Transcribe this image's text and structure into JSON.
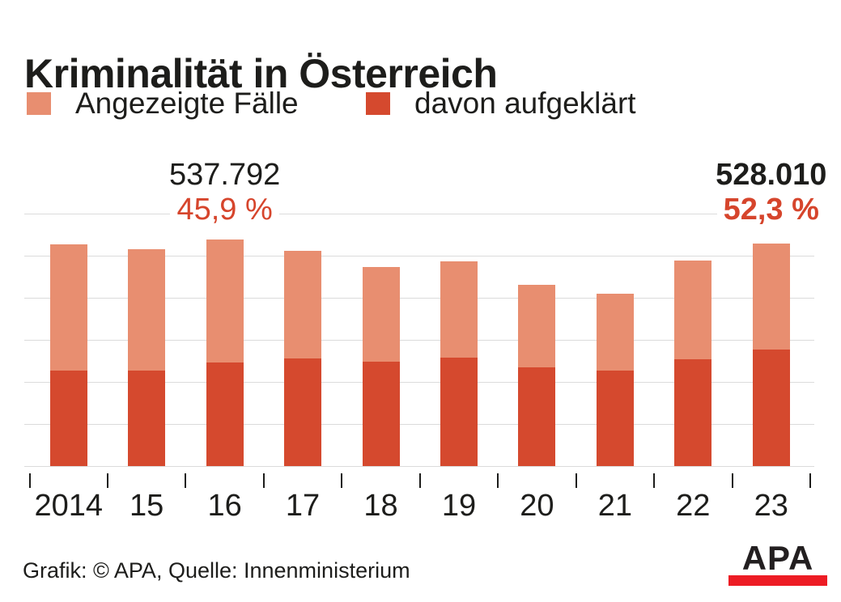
{
  "title": "Kriminalität in Österreich",
  "legend": {
    "reported": {
      "label": "Angezeigte Fälle",
      "color": "#e88e70"
    },
    "solved": {
      "label": "davon aufgeklärt",
      "color": "#d5492e"
    }
  },
  "chart_data": {
    "type": "bar",
    "subtype": "overlaid-stacked-bars",
    "categories": [
      "2014",
      "15",
      "16",
      "17",
      "18",
      "19",
      "20",
      "21",
      "22",
      "23"
    ],
    "series": [
      {
        "name": "Angezeigte Fälle",
        "color": "#e88e70",
        "values": [
          526300,
          516000,
          537792,
          511000,
          473100,
          487100,
          431300,
          409000,
          489000,
          528010
        ]
      },
      {
        "name": "davon aufgeklärt",
        "color": "#d5492e",
        "values": [
          226300,
          226900,
          246847,
          255200,
          248100,
          257100,
          234000,
          226300,
          253800,
          276149
        ]
      }
    ],
    "ylim": [
      0,
      600000
    ],
    "gridline_step": 100000,
    "grid": "horizontal",
    "y_axis_labels_shown": false,
    "legend_position": "top",
    "annotations": [
      {
        "category_index": 2,
        "value_label": "537.792",
        "pct_label": "45,9 %",
        "bold": false
      },
      {
        "category_index": 9,
        "value_label": "528.010",
        "pct_label": "52,3 %",
        "bold": true
      }
    ]
  },
  "footer": {
    "credit": "Grafik: © APA, Quelle: Innenministerium"
  },
  "logo": {
    "text": "APA",
    "text_color": "#231f20",
    "bar_color": "#ed1c24"
  },
  "colors": {
    "bar_light": "#e88e70",
    "bar_dark": "#d5492e",
    "accent_text": "#d6452c",
    "gridline": "#dbdbdb",
    "text": "#1d1d1b"
  }
}
